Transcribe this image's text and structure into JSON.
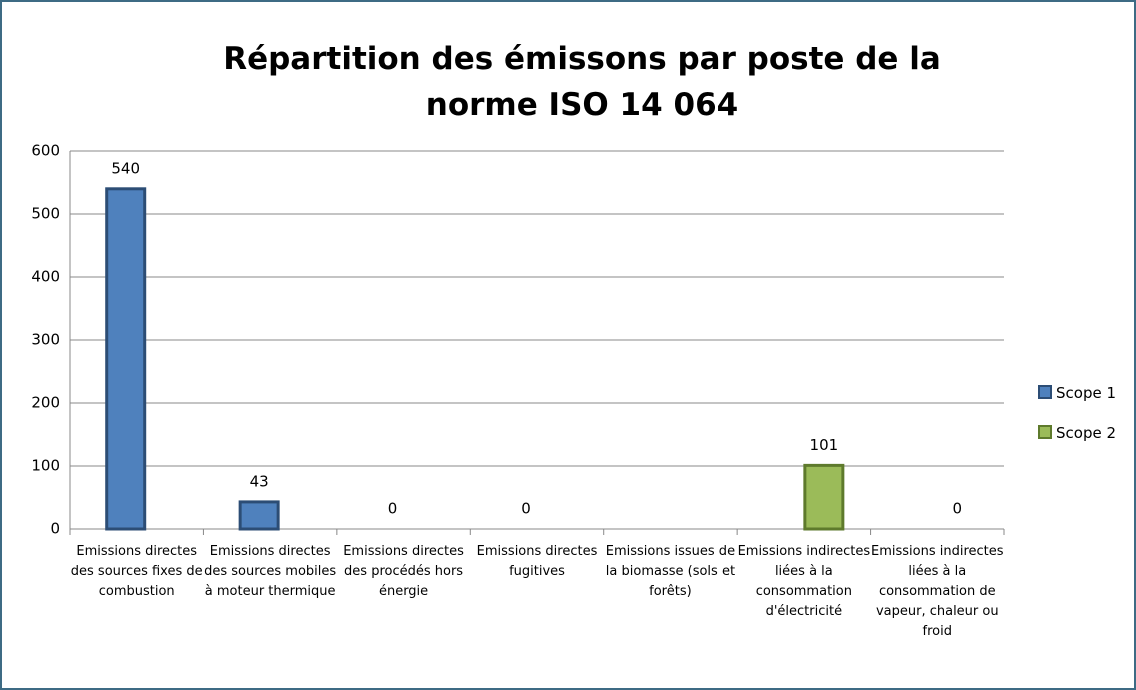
{
  "chart_data": {
    "type": "bar",
    "title": "Répartition des émissons par poste de la norme ISO 14 064",
    "categories": [
      "Emissions directes des sources fixes de combustion",
      "Emissions directes des sources mobiles à moteur thermique",
      "Emissions directes des procédés hors énergie",
      "Emissions directes fugitives",
      "Emissions issues de la biomasse (sols et forêts)",
      "Emissions indirectes liées à la consommation d'électricité",
      "Emissions indirectes liées à la consommation de vapeur, chaleur ou froid"
    ],
    "series": [
      {
        "name": "Scope 1",
        "color": "#4f81bd",
        "edge": "#2c4d75",
        "values": [
          540,
          43,
          0,
          0,
          null,
          null,
          null
        ]
      },
      {
        "name": "Scope 2",
        "color": "#9bbb59",
        "edge": "#5e7a2c",
        "values": [
          null,
          null,
          null,
          null,
          null,
          101,
          0
        ]
      }
    ],
    "ylim": [
      0,
      600
    ],
    "yticks": [
      0,
      100,
      200,
      300,
      400,
      500,
      600
    ],
    "grid": true
  }
}
